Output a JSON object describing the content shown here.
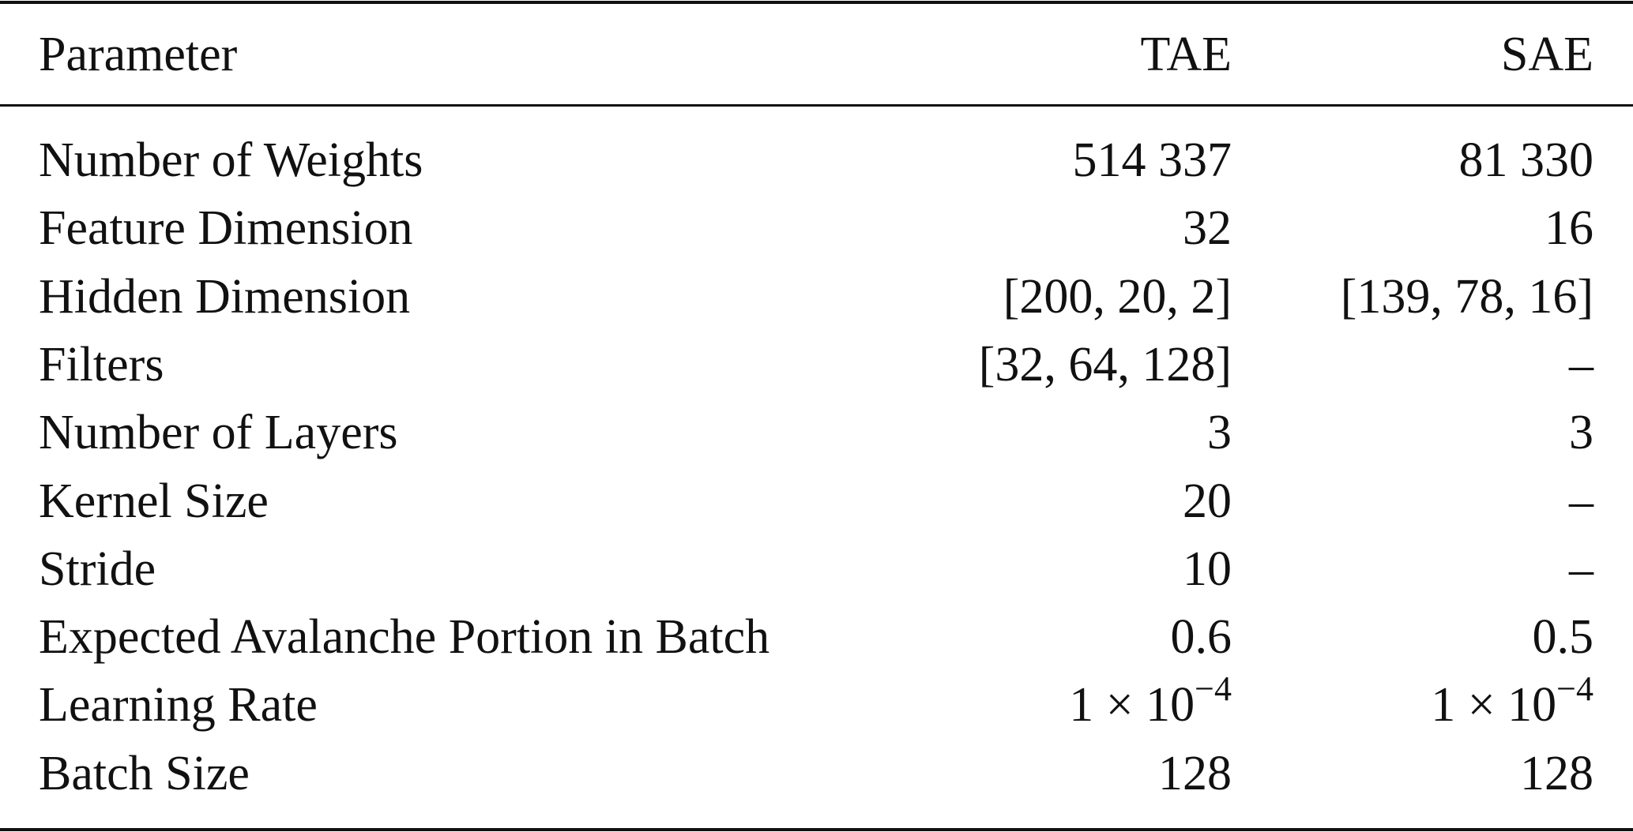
{
  "table": {
    "header": [
      "Parameter",
      "TAE",
      "SAE"
    ],
    "rows": [
      [
        "Number of Weights",
        "514 337",
        "81 330"
      ],
      [
        "Feature Dimension",
        "32",
        "16"
      ],
      [
        "Hidden Dimension",
        "[200, 20, 2]",
        "[139, 78, 16]"
      ],
      [
        "Filters",
        "[32, 64, 128]",
        "–"
      ],
      [
        "Number of Layers",
        "3",
        "3"
      ],
      [
        "Kernel Size",
        "20",
        "–"
      ],
      [
        "Stride",
        "10",
        "–"
      ],
      [
        "Expected Avalanche Portion in Batch",
        "0.6",
        "0.5"
      ],
      [
        "Learning Rate",
        {
          "base": "1 × 10",
          "exp": "−4"
        },
        {
          "base": "1 × 10",
          "exp": "−4"
        }
      ],
      [
        "Batch Size",
        "128",
        "128"
      ]
    ]
  }
}
